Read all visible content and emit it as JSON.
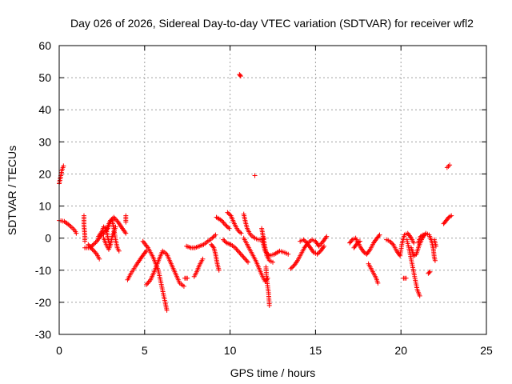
{
  "chart_data": {
    "type": "scatter",
    "title": "Day 026 of 2026, Sidereal Day-to-day VTEC variation (SDTVAR) for receiver wfl2",
    "xlabel": "GPS time / hours",
    "ylabel": "SDTVAR / TECUs",
    "xlim": [
      0,
      25
    ],
    "ylim": [
      -30,
      60
    ],
    "xticks": [
      "0",
      "5",
      "10",
      "15",
      "20",
      "25"
    ],
    "yticks": [
      "-30",
      "-20",
      "-10",
      "0",
      "10",
      "20",
      "30",
      "40",
      "50",
      "60"
    ],
    "grid": true,
    "marker": "+",
    "series": [
      {
        "name": "SDTVAR",
        "color": "#ff0000",
        "segments": [
          [
            [
              0.0,
              17
            ],
            [
              0.08,
              19
            ],
            [
              0.15,
              21
            ],
            [
              0.25,
              22.5
            ]
          ],
          [
            [
              0.0,
              5.5
            ],
            [
              0.3,
              5.2
            ],
            [
              0.6,
              4
            ],
            [
              0.9,
              2.5
            ],
            [
              1.0,
              1.5
            ]
          ],
          [
            [
              1.45,
              7
            ],
            [
              1.45,
              4
            ],
            [
              1.5,
              1
            ],
            [
              1.5,
              -1
            ]
          ],
          [
            [
              1.5,
              -3
            ],
            [
              1.8,
              -3
            ],
            [
              2.0,
              -2
            ],
            [
              2.2,
              -1
            ],
            [
              2.4,
              0.5
            ],
            [
              2.6,
              1.5
            ],
            [
              2.85,
              3
            ],
            [
              3.0,
              5.5
            ],
            [
              3.2,
              6.5
            ],
            [
              3.45,
              5
            ],
            [
              3.7,
              3
            ],
            [
              3.9,
              1.5
            ]
          ],
          [
            [
              1.7,
              -2
            ],
            [
              1.95,
              -3.5
            ],
            [
              2.2,
              -5
            ],
            [
              2.35,
              -6.5
            ]
          ],
          [
            [
              2.3,
              0.5
            ],
            [
              2.5,
              2
            ],
            [
              2.6,
              3.5
            ],
            [
              2.75,
              3
            ],
            [
              2.85,
              0
            ],
            [
              2.95,
              -2
            ]
          ],
          [
            [
              2.6,
              0
            ],
            [
              2.75,
              -2
            ],
            [
              2.9,
              -3.5
            ],
            [
              3.0,
              -2
            ],
            [
              3.1,
              0.5
            ],
            [
              3.3,
              3.5
            ]
          ],
          [
            [
              2.8,
              3
            ],
            [
              2.95,
              5
            ],
            [
              3.1,
              5.5
            ],
            [
              3.2,
              3
            ],
            [
              3.3,
              -0.5
            ],
            [
              3.4,
              -3
            ],
            [
              3.5,
              -4
            ]
          ],
          [
            [
              3.9,
              5
            ],
            [
              3.9,
              7
            ]
          ],
          [
            [
              4.0,
              -13
            ],
            [
              4.2,
              -11
            ],
            [
              4.5,
              -8.5
            ],
            [
              4.75,
              -6.5
            ],
            [
              4.95,
              -5
            ],
            [
              5.1,
              -4
            ]
          ],
          [
            [
              4.9,
              -1
            ],
            [
              5.2,
              -3
            ],
            [
              5.5,
              -6
            ],
            [
              5.8,
              -10
            ],
            [
              6.0,
              -15
            ],
            [
              6.2,
              -20
            ],
            [
              6.3,
              -22.5
            ]
          ],
          [
            [
              5.1,
              -14.5
            ],
            [
              5.35,
              -13
            ],
            [
              5.6,
              -10
            ],
            [
              5.85,
              -6.5
            ],
            [
              6.05,
              -4
            ],
            [
              6.3,
              -5
            ],
            [
              6.55,
              -8
            ],
            [
              6.8,
              -11
            ],
            [
              7.05,
              -14
            ],
            [
              7.3,
              -15
            ]
          ],
          [
            [
              7.35,
              -12.5
            ],
            [
              7.5,
              -12.5
            ]
          ],
          [
            [
              7.45,
              -2.5
            ],
            [
              7.7,
              -3
            ],
            [
              7.95,
              -3
            ],
            [
              8.2,
              -2.5
            ],
            [
              8.45,
              -2
            ],
            [
              8.7,
              -1
            ],
            [
              8.95,
              0
            ],
            [
              9.15,
              1
            ]
          ],
          [
            [
              7.9,
              -12
            ],
            [
              8.05,
              -10.5
            ],
            [
              8.2,
              -8.5
            ],
            [
              8.4,
              -6.5
            ]
          ],
          [
            [
              8.9,
              -2
            ],
            [
              9.05,
              -3
            ],
            [
              9.15,
              -5
            ],
            [
              9.25,
              -8
            ],
            [
              9.35,
              -10
            ]
          ],
          [
            [
              9.2,
              6.5
            ],
            [
              9.5,
              5.5
            ],
            [
              9.75,
              4
            ],
            [
              9.95,
              3
            ]
          ],
          [
            [
              9.85,
              8
            ],
            [
              10.05,
              7
            ],
            [
              10.25,
              4.5
            ],
            [
              10.45,
              2.5
            ],
            [
              10.65,
              1.5
            ]
          ],
          [
            [
              9.6,
              -0.5
            ],
            [
              9.8,
              -1.5
            ],
            [
              10.05,
              -2
            ],
            [
              10.3,
              -3
            ],
            [
              10.55,
              -4.5
            ],
            [
              10.8,
              -6
            ],
            [
              11.05,
              -7.5
            ]
          ],
          [
            [
              10.55,
              51
            ],
            [
              10.62,
              50.5
            ]
          ],
          [
            [
              10.8,
              7.5
            ],
            [
              10.9,
              5
            ],
            [
              11.0,
              3
            ],
            [
              11.2,
              1
            ],
            [
              11.45,
              0
            ],
            [
              11.65,
              -0.5
            ],
            [
              11.85,
              -0.5
            ],
            [
              12.0,
              0
            ]
          ],
          [
            [
              10.8,
              0
            ],
            [
              10.95,
              -1.5
            ],
            [
              11.1,
              -3
            ],
            [
              11.3,
              -5
            ],
            [
              11.5,
              -7
            ],
            [
              11.7,
              -9.5
            ],
            [
              11.9,
              -12
            ],
            [
              12.05,
              -13.5
            ],
            [
              12.2,
              -12.5
            ]
          ],
          [
            [
              11.45,
              19.5
            ]
          ],
          [
            [
              11.85,
              3
            ],
            [
              11.95,
              0
            ],
            [
              12.05,
              -3
            ],
            [
              12.15,
              -5.5
            ],
            [
              12.3,
              -7
            ],
            [
              12.5,
              -7.5
            ]
          ],
          [
            [
              12.1,
              -9
            ],
            [
              12.15,
              -13
            ],
            [
              12.25,
              -17
            ],
            [
              12.3,
              -21
            ]
          ],
          [
            [
              11.9,
              -1
            ],
            [
              12.05,
              -4
            ],
            [
              12.3,
              -5.5
            ],
            [
              12.6,
              -5
            ],
            [
              12.9,
              -4
            ],
            [
              13.2,
              -4.5
            ],
            [
              13.4,
              -5
            ]
          ],
          [
            [
              13.55,
              -9.5
            ],
            [
              13.75,
              -8.5
            ],
            [
              13.95,
              -7
            ],
            [
              14.15,
              -5
            ],
            [
              14.35,
              -3
            ],
            [
              14.55,
              -1.5
            ],
            [
              14.8,
              -0.5
            ],
            [
              15.0,
              -1
            ],
            [
              15.2,
              -2.5
            ],
            [
              15.45,
              -1
            ],
            [
              15.65,
              0.5
            ]
          ],
          [
            [
              14.1,
              -1
            ],
            [
              14.3,
              -0.5
            ],
            [
              14.5,
              -1.5
            ],
            [
              14.7,
              -3
            ],
            [
              14.9,
              -4.5
            ],
            [
              15.1,
              -5
            ],
            [
              15.3,
              -4
            ],
            [
              15.5,
              -2.5
            ]
          ],
          [
            [
              17.0,
              -1.5
            ],
            [
              17.15,
              -0.5
            ],
            [
              17.35,
              0
            ],
            [
              17.5,
              -1.5
            ],
            [
              17.65,
              -3
            ],
            [
              17.85,
              -4.5
            ],
            [
              18.0,
              -5
            ],
            [
              18.2,
              -3.5
            ],
            [
              18.4,
              -1.5
            ],
            [
              18.6,
              0
            ],
            [
              18.75,
              1
            ]
          ],
          [
            [
              17.25,
              -3
            ],
            [
              17.45,
              -1.5
            ],
            [
              17.6,
              -1
            ]
          ],
          [
            [
              18.1,
              -8
            ],
            [
              18.25,
              -9.5
            ],
            [
              18.4,
              -11
            ],
            [
              18.55,
              -12.5
            ],
            [
              18.65,
              -14
            ]
          ],
          [
            [
              19.15,
              -0.5
            ],
            [
              19.35,
              -1
            ],
            [
              19.55,
              -2
            ],
            [
              19.75,
              -4
            ],
            [
              19.95,
              -5.5
            ],
            [
              20.05,
              -2
            ],
            [
              20.2,
              1
            ],
            [
              20.4,
              1.5
            ],
            [
              20.6,
              0
            ],
            [
              20.75,
              -1.5
            ]
          ],
          [
            [
              20.15,
              -12.5
            ],
            [
              20.3,
              -12.5
            ]
          ],
          [
            [
              20.35,
              -0.5
            ],
            [
              20.5,
              -4
            ],
            [
              20.65,
              -8
            ],
            [
              20.8,
              -12
            ],
            [
              20.95,
              -16
            ],
            [
              21.1,
              -18
            ]
          ],
          [
            [
              20.6,
              -3
            ],
            [
              20.75,
              -5.5
            ],
            [
              20.9,
              -5
            ],
            [
              21.05,
              -2.5
            ],
            [
              21.25,
              0
            ],
            [
              21.45,
              1.5
            ],
            [
              21.65,
              1
            ],
            [
              21.8,
              -1
            ],
            [
              21.9,
              -3.5
            ],
            [
              21.95,
              -6
            ],
            [
              22.0,
              -7
            ]
          ],
          [
            [
              21.0,
              -1.5
            ],
            [
              21.15,
              0.5
            ],
            [
              21.3,
              1
            ]
          ],
          [
            [
              21.6,
              -11
            ],
            [
              21.7,
              -10.5
            ]
          ],
          [
            [
              21.95,
              -0.5
            ],
            [
              22.05,
              -2.5
            ]
          ],
          [
            [
              22.5,
              4.5
            ],
            [
              22.65,
              5.5
            ],
            [
              22.8,
              6.5
            ],
            [
              22.95,
              7
            ]
          ],
          [
            [
              22.7,
              22
            ],
            [
              22.85,
              22.8
            ]
          ]
        ]
      }
    ]
  }
}
